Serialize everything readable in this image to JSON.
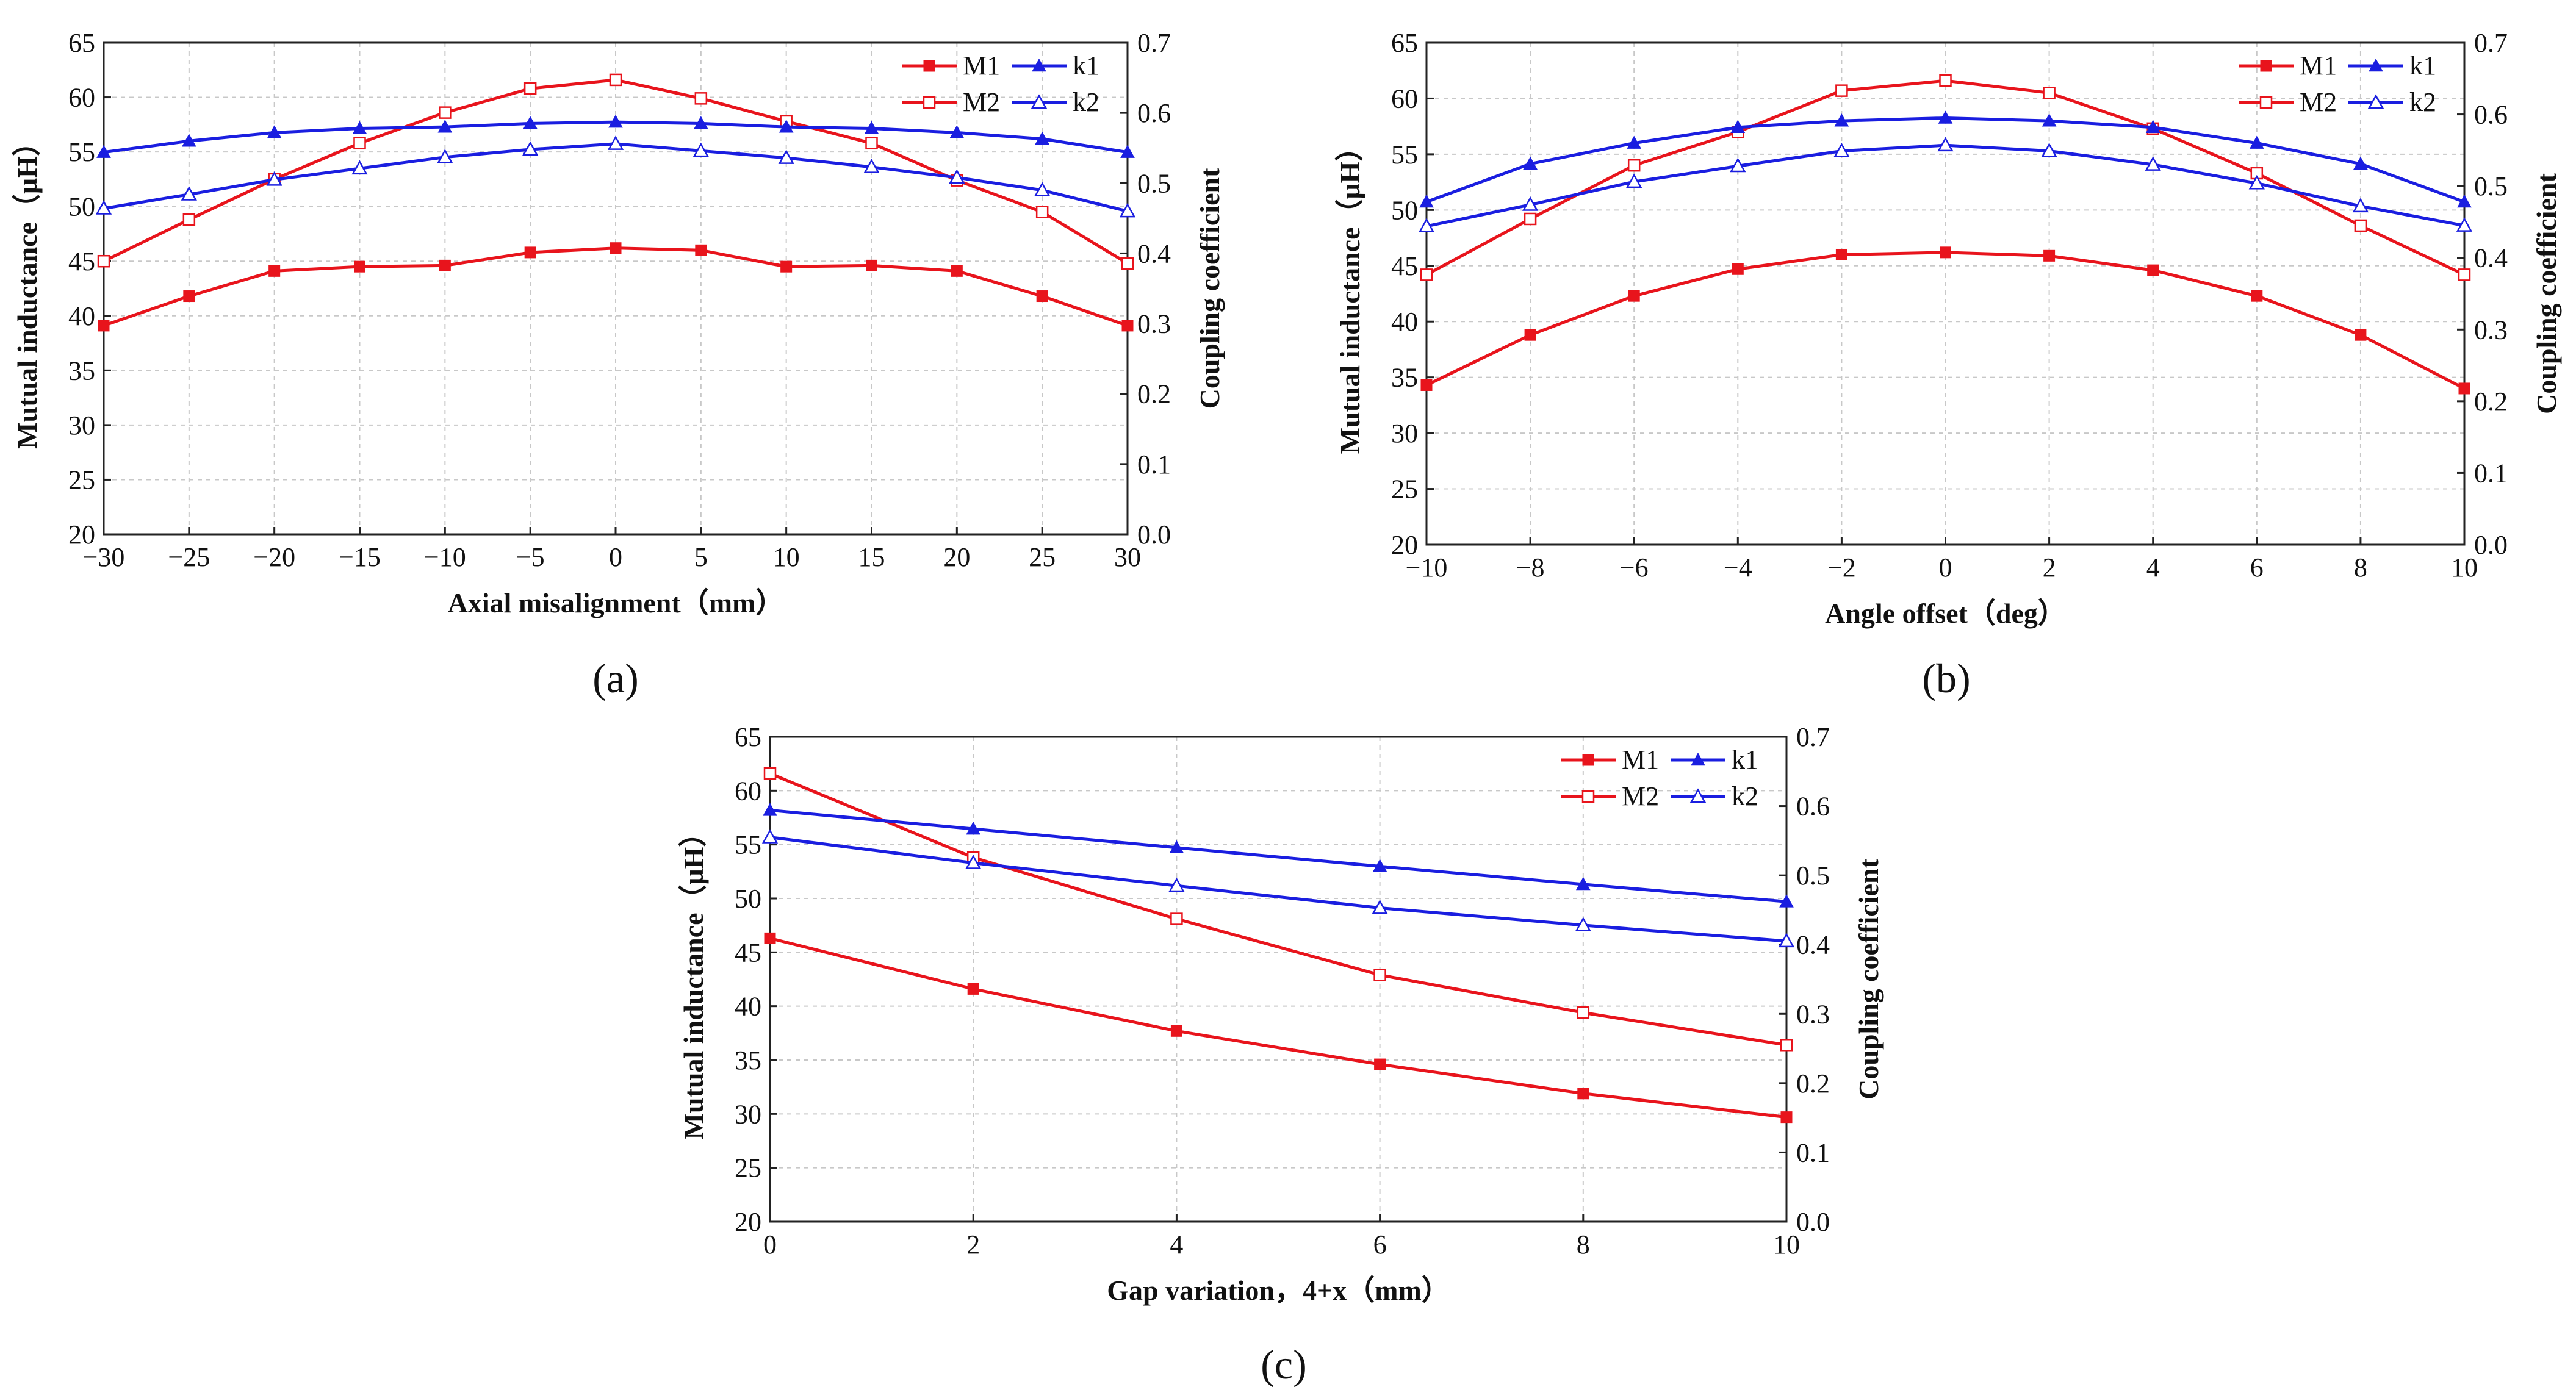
{
  "figure": {
    "panel_labels": [
      "(a)",
      "(b)",
      "(c)"
    ]
  },
  "colors": {
    "M": "#e8141c",
    "k": "#1a1ee0"
  },
  "chart_data": [
    {
      "type": "line",
      "panel": "(a)",
      "xlabel": "Axial misalignment（mm）",
      "ylabel": "Mutual inductance（μH）",
      "y2label": "Coupling coefficient",
      "x": [
        -30,
        -25,
        -20,
        -15,
        -10,
        -5,
        0,
        5,
        10,
        15,
        20,
        25,
        30
      ],
      "xticks": [
        "−30",
        "−25",
        "−20",
        "−15",
        "−10",
        "−5",
        "0",
        "5",
        "10",
        "15",
        "20",
        "25",
        "30"
      ],
      "xlim": [
        -30,
        30
      ],
      "ylim": [
        20,
        65
      ],
      "yticks": [
        "20",
        "25",
        "30",
        "35",
        "40",
        "45",
        "50",
        "55",
        "60",
        "65"
      ],
      "y2lim": [
        0.0,
        0.7
      ],
      "y2ticks": [
        "0.0",
        "0.1",
        "0.2",
        "0.3",
        "0.4",
        "0.5",
        "0.6",
        "0.7"
      ],
      "grid": true,
      "legend": "top-right",
      "series": [
        {
          "name": "M1",
          "axis": "left",
          "marker": "square-filled",
          "values": [
            39.1,
            41.8,
            44.1,
            44.5,
            44.6,
            45.8,
            46.2,
            46.0,
            44.5,
            44.6,
            44.1,
            41.8,
            39.1
          ]
        },
        {
          "name": "M2",
          "axis": "left",
          "marker": "square-open",
          "values": [
            45.0,
            48.8,
            52.5,
            55.8,
            58.6,
            60.8,
            61.6,
            59.9,
            57.8,
            55.8,
            52.4,
            49.5,
            44.8
          ]
        },
        {
          "name": "k1",
          "axis": "right",
          "marker": "triangle-filled",
          "values": [
            0.544,
            0.56,
            0.572,
            0.578,
            0.58,
            0.585,
            0.587,
            0.585,
            0.58,
            0.578,
            0.572,
            0.563,
            0.544
          ]
        },
        {
          "name": "k2",
          "axis": "right",
          "marker": "triangle-open",
          "values": [
            0.464,
            0.484,
            0.505,
            0.521,
            0.537,
            0.548,
            0.556,
            0.546,
            0.536,
            0.523,
            0.508,
            0.49,
            0.46
          ]
        }
      ]
    },
    {
      "type": "line",
      "panel": "(b)",
      "xlabel": "Angle offset（deg）",
      "ylabel": "Mutual inductance（μH）",
      "y2label": "Coupling coefficient",
      "x": [
        -10,
        -8,
        -6,
        -4,
        -2,
        0,
        2,
        4,
        6,
        8,
        10
      ],
      "xticks": [
        "−10",
        "−8",
        "−6",
        "−4",
        "−2",
        "0",
        "2",
        "4",
        "6",
        "8",
        "10"
      ],
      "xlim": [
        -10,
        10
      ],
      "ylim": [
        20,
        65
      ],
      "yticks": [
        "20",
        "25",
        "30",
        "35",
        "40",
        "45",
        "50",
        "55",
        "60",
        "65"
      ],
      "y2lim": [
        0.0,
        0.7
      ],
      "y2ticks": [
        "0.0",
        "0.1",
        "0.2",
        "0.3",
        "0.4",
        "0.5",
        "0.6",
        "0.7"
      ],
      "grid": true,
      "legend": "top-right",
      "series": [
        {
          "name": "M1",
          "axis": "left",
          "marker": "square-filled",
          "values": [
            34.3,
            38.8,
            42.3,
            44.7,
            46.0,
            46.2,
            45.9,
            44.6,
            42.3,
            38.8,
            34.0
          ]
        },
        {
          "name": "M2",
          "axis": "left",
          "marker": "square-open",
          "values": [
            44.2,
            49.2,
            54.0,
            57.0,
            60.7,
            61.6,
            60.5,
            57.3,
            53.3,
            48.6,
            44.2
          ]
        },
        {
          "name": "k1",
          "axis": "right",
          "marker": "triangle-filled",
          "values": [
            0.478,
            0.531,
            0.56,
            0.582,
            0.591,
            0.595,
            0.591,
            0.582,
            0.56,
            0.531,
            0.478
          ]
        },
        {
          "name": "k2",
          "axis": "right",
          "marker": "triangle-open",
          "values": [
            0.444,
            0.474,
            0.506,
            0.528,
            0.549,
            0.557,
            0.549,
            0.53,
            0.504,
            0.472,
            0.445
          ]
        }
      ]
    },
    {
      "type": "line",
      "panel": "(c)",
      "xlabel": "Gap variation，4+x（mm）",
      "ylabel": "Mutual inductance（μH）",
      "y2label": "Coupling coefficient",
      "x": [
        0,
        2,
        4,
        6,
        8,
        10
      ],
      "xticks": [
        "0",
        "2",
        "4",
        "6",
        "8",
        "10"
      ],
      "xlim": [
        0,
        10
      ],
      "ylim": [
        20,
        65
      ],
      "yticks": [
        "20",
        "25",
        "30",
        "35",
        "40",
        "45",
        "50",
        "55",
        "60",
        "65"
      ],
      "y2lim": [
        0.0,
        0.7
      ],
      "y2ticks": [
        "0.0",
        "0.1",
        "0.2",
        "0.3",
        "0.4",
        "0.5",
        "0.6",
        "0.7"
      ],
      "grid": true,
      "legend": "top-right",
      "series": [
        {
          "name": "M1",
          "axis": "left",
          "marker": "square-filled",
          "values": [
            46.3,
            41.6,
            37.7,
            34.6,
            31.9,
            29.7
          ]
        },
        {
          "name": "M2",
          "axis": "left",
          "marker": "square-open",
          "values": [
            61.6,
            53.8,
            48.1,
            42.9,
            39.4,
            36.4
          ]
        },
        {
          "name": "k1",
          "axis": "right",
          "marker": "triangle-filled",
          "values": [
            0.594,
            0.567,
            0.54,
            0.513,
            0.487,
            0.462
          ]
        },
        {
          "name": "k2",
          "axis": "right",
          "marker": "triangle-open",
          "values": [
            0.555,
            0.518,
            0.485,
            0.453,
            0.428,
            0.405
          ]
        }
      ]
    }
  ]
}
